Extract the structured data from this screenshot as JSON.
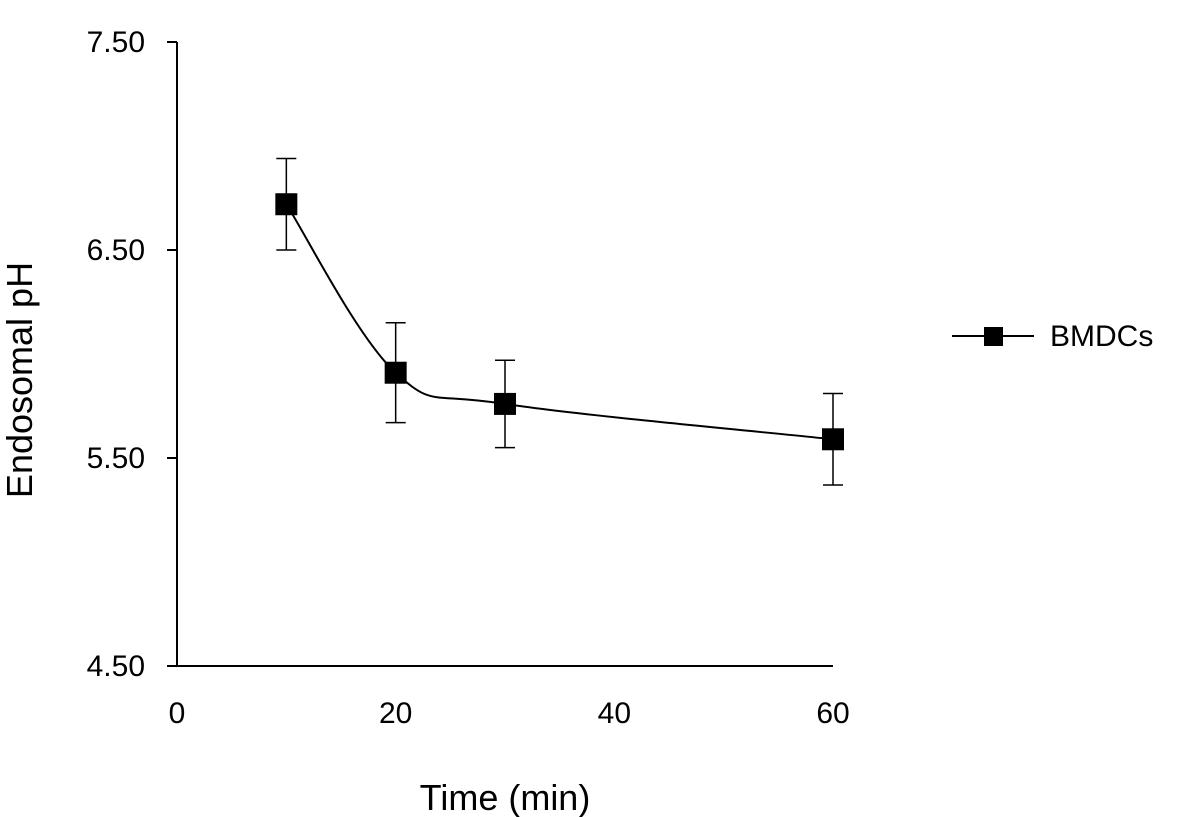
{
  "chart_data": {
    "type": "line",
    "title": "",
    "xlabel": "Time (min)",
    "ylabel": "Endosomal pH",
    "xlim": [
      0,
      60
    ],
    "ylim": [
      4.5,
      7.5
    ],
    "x_ticks": [
      "0",
      "20",
      "40",
      "60"
    ],
    "y_ticks": [
      "4.50",
      "5.50",
      "6.50",
      "7.50"
    ],
    "grid": false,
    "legend_position": "right",
    "series": [
      {
        "name": "BMDCs",
        "color": "#000000",
        "marker": "square",
        "smooth": true,
        "x": [
          10,
          20,
          30,
          60
        ],
        "y": [
          6.72,
          5.91,
          5.76,
          5.59
        ],
        "error": [
          0.22,
          0.24,
          0.21,
          0.22
        ]
      }
    ]
  }
}
